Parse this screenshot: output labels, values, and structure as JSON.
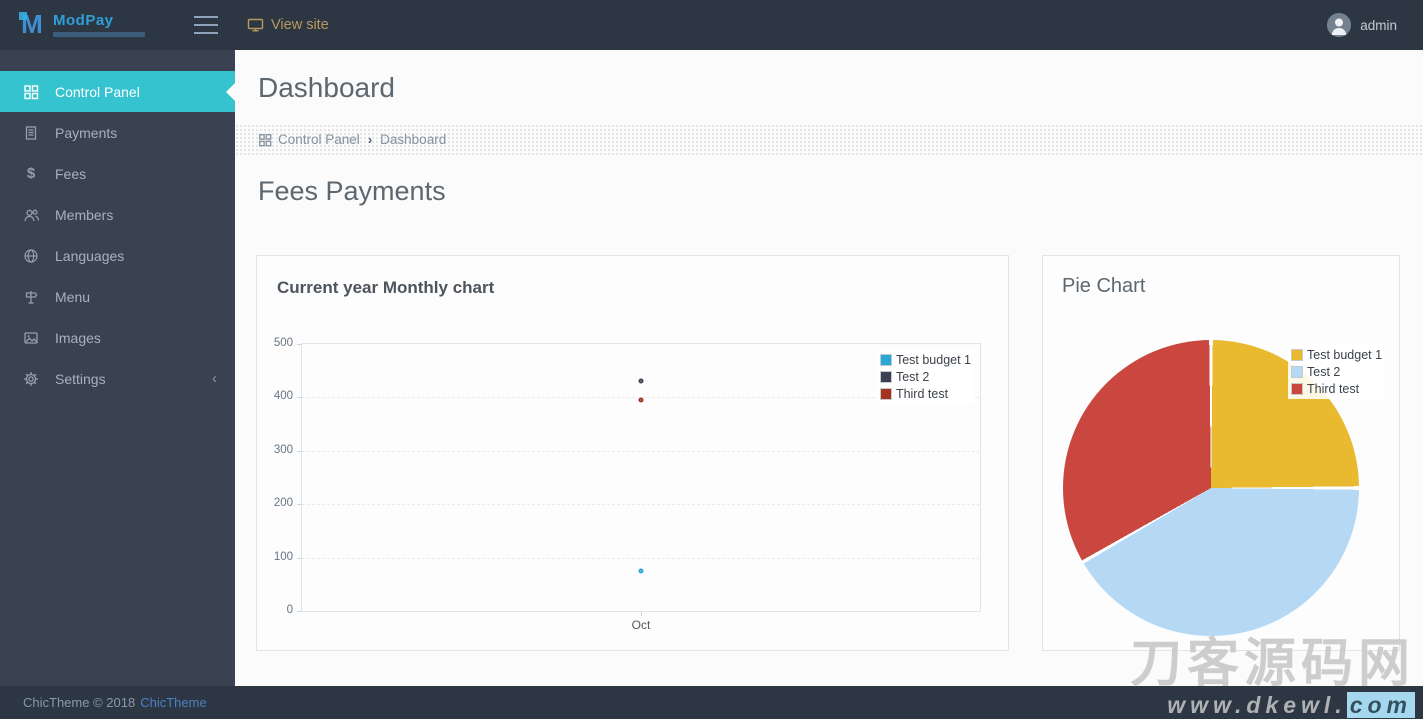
{
  "header": {
    "logo": {
      "text": "ModPay"
    },
    "view_site_label": "View site",
    "username": "admin"
  },
  "sidebar": {
    "items": [
      {
        "label": "Control Panel",
        "icon": "grid-icon",
        "active": true
      },
      {
        "label": "Payments",
        "icon": "receipt-icon"
      },
      {
        "label": "Fees",
        "icon": "dollar-icon"
      },
      {
        "label": "Members",
        "icon": "members-icon"
      },
      {
        "label": "Languages",
        "icon": "globe-icon"
      },
      {
        "label": "Menu",
        "icon": "signpost-icon"
      },
      {
        "label": "Images",
        "icon": "image-icon"
      },
      {
        "label": "Settings",
        "icon": "gear-icon",
        "has_submenu": true
      }
    ]
  },
  "main": {
    "page_title": "Dashboard",
    "breadcrumb": {
      "items": [
        "Control Panel",
        "Dashboard"
      ],
      "separator": "›"
    },
    "section_title": "Fees Payments"
  },
  "chart_data": [
    {
      "type": "scatter",
      "title": "Current year Monthly chart",
      "categories": [
        "Oct"
      ],
      "series": [
        {
          "name": "Test budget 1",
          "color": "#2aa7d4",
          "values": [
            75
          ]
        },
        {
          "name": "Test 2",
          "color": "#3b4152",
          "values": [
            430
          ]
        },
        {
          "name": "Third test",
          "color": "#a5311f",
          "values": [
            395
          ]
        }
      ],
      "ylim": [
        0,
        500
      ],
      "yticks": [
        0,
        100,
        200,
        300,
        400,
        500
      ],
      "grid": "horizontal-dashed",
      "legend_position": "top-right"
    },
    {
      "type": "pie",
      "title": "Pie Chart",
      "labels": [
        "Test budget 1",
        "Test 2",
        "Third test"
      ],
      "values": [
        300,
        500,
        400
      ],
      "colors": [
        "#e9b930",
        "#b5d9f4",
        "#c9473f"
      ],
      "start_angle_deg": 0,
      "direction": "clockwise",
      "legend_position": "top-right"
    }
  ],
  "footer": {
    "text": "ChicTheme © 2018",
    "link_label": "ChicTheme"
  },
  "watermark": {
    "title": "刀客源码网",
    "url_prefix": "www.dkewl.",
    "url_highlight": "com"
  },
  "colors": {
    "accent_teal": "#35c4cf",
    "header_bg": "#2d3744",
    "sidebar_bg": "#3a4252",
    "link_blue": "#4e81c3",
    "view_site_gold": "#b9985e",
    "logo_blue": "#2f9fd6"
  }
}
